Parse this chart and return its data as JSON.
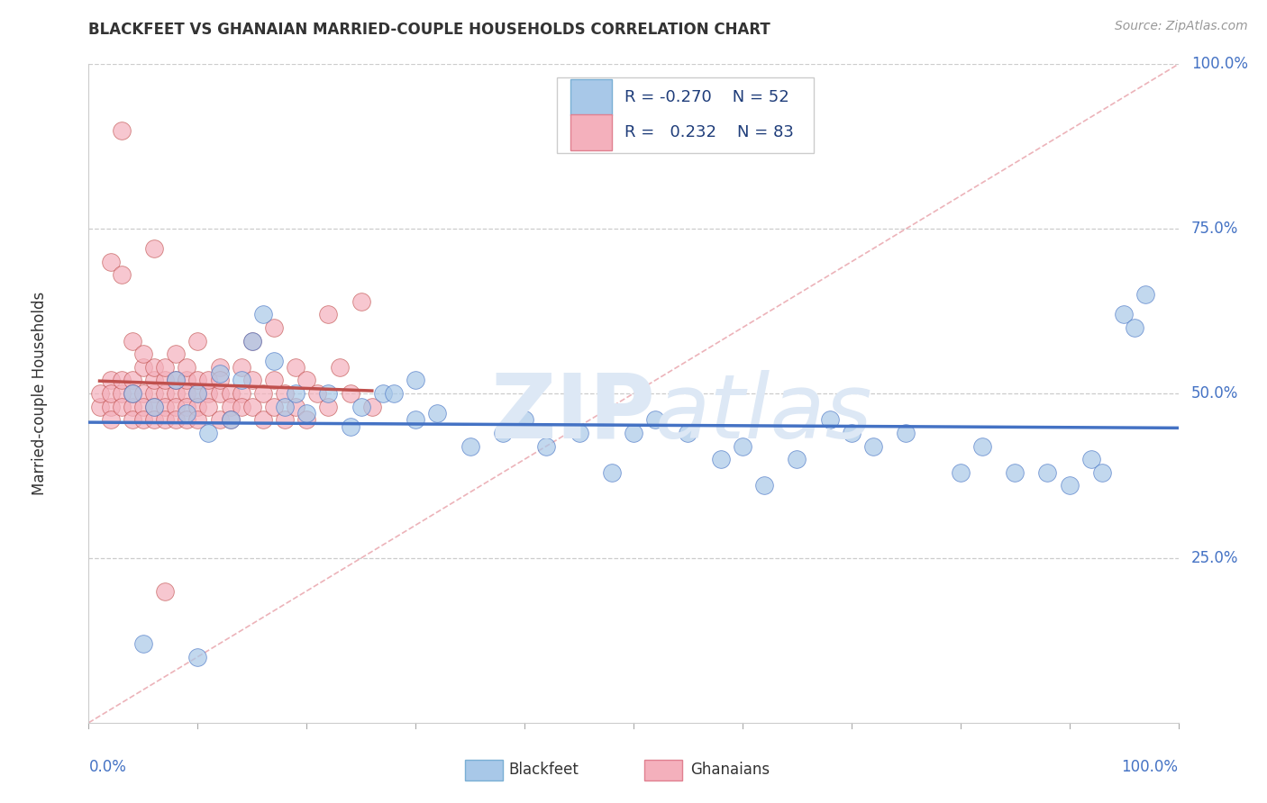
{
  "title": "BLACKFEET VS GHANAIAN MARRIED-COUPLE HOUSEHOLDS CORRELATION CHART",
  "source": "Source: ZipAtlas.com",
  "ylabel": "Married-couple Households",
  "ylabel_ticks": [
    "25.0%",
    "50.0%",
    "75.0%",
    "100.0%"
  ],
  "ylabel_tick_vals": [
    0.25,
    0.5,
    0.75,
    1.0
  ],
  "legend_r_blackfeet": "-0.270",
  "legend_n_blackfeet": "52",
  "legend_r_ghanaians": "0.232",
  "legend_n_ghanaians": "83",
  "blackfeet_color": "#a8c8e8",
  "ghanaians_color": "#f4b0bc",
  "trend_blackfeet_color": "#4472c4",
  "trend_ghanaians_color": "#c0504d",
  "ref_line_color": "#f4b0bc",
  "blackfeet_x": [
    0.04,
    0.06,
    0.08,
    0.09,
    0.1,
    0.11,
    0.12,
    0.13,
    0.14,
    0.15,
    0.16,
    0.17,
    0.18,
    0.19,
    0.2,
    0.22,
    0.24,
    0.25,
    0.27,
    0.28,
    0.3,
    0.3,
    0.32,
    0.35,
    0.38,
    0.4,
    0.42,
    0.45,
    0.48,
    0.5,
    0.52,
    0.55,
    0.58,
    0.6,
    0.62,
    0.65,
    0.68,
    0.7,
    0.72,
    0.75,
    0.8,
    0.82,
    0.85,
    0.88,
    0.9,
    0.92,
    0.93,
    0.95,
    0.96,
    0.97,
    0.05,
    0.1
  ],
  "blackfeet_y": [
    0.5,
    0.48,
    0.52,
    0.47,
    0.5,
    0.44,
    0.53,
    0.46,
    0.52,
    0.58,
    0.62,
    0.55,
    0.48,
    0.5,
    0.47,
    0.5,
    0.45,
    0.48,
    0.5,
    0.5,
    0.46,
    0.52,
    0.47,
    0.42,
    0.44,
    0.46,
    0.42,
    0.44,
    0.38,
    0.44,
    0.46,
    0.44,
    0.4,
    0.42,
    0.36,
    0.4,
    0.46,
    0.44,
    0.42,
    0.44,
    0.38,
    0.42,
    0.38,
    0.38,
    0.36,
    0.4,
    0.38,
    0.62,
    0.6,
    0.65,
    0.12,
    0.1
  ],
  "ghanaians_x": [
    0.01,
    0.01,
    0.02,
    0.02,
    0.02,
    0.02,
    0.03,
    0.03,
    0.03,
    0.04,
    0.04,
    0.04,
    0.04,
    0.05,
    0.05,
    0.05,
    0.05,
    0.06,
    0.06,
    0.06,
    0.06,
    0.06,
    0.07,
    0.07,
    0.07,
    0.07,
    0.07,
    0.08,
    0.08,
    0.08,
    0.08,
    0.08,
    0.09,
    0.09,
    0.09,
    0.09,
    0.09,
    0.1,
    0.1,
    0.1,
    0.1,
    0.1,
    0.11,
    0.11,
    0.11,
    0.12,
    0.12,
    0.12,
    0.12,
    0.13,
    0.13,
    0.13,
    0.14,
    0.14,
    0.14,
    0.15,
    0.15,
    0.15,
    0.16,
    0.16,
    0.17,
    0.17,
    0.17,
    0.18,
    0.18,
    0.19,
    0.19,
    0.2,
    0.2,
    0.21,
    0.22,
    0.22,
    0.23,
    0.24,
    0.25,
    0.26,
    0.02,
    0.03,
    0.04,
    0.05,
    0.06,
    0.03,
    0.07
  ],
  "ghanaians_y": [
    0.48,
    0.5,
    0.48,
    0.52,
    0.46,
    0.5,
    0.5,
    0.48,
    0.52,
    0.52,
    0.48,
    0.5,
    0.46,
    0.5,
    0.48,
    0.54,
    0.46,
    0.5,
    0.48,
    0.52,
    0.54,
    0.46,
    0.5,
    0.52,
    0.48,
    0.46,
    0.54,
    0.5,
    0.48,
    0.52,
    0.56,
    0.46,
    0.5,
    0.52,
    0.48,
    0.46,
    0.54,
    0.5,
    0.52,
    0.48,
    0.58,
    0.46,
    0.5,
    0.52,
    0.48,
    0.5,
    0.46,
    0.54,
    0.52,
    0.5,
    0.48,
    0.46,
    0.54,
    0.5,
    0.48,
    0.52,
    0.58,
    0.48,
    0.5,
    0.46,
    0.52,
    0.6,
    0.48,
    0.5,
    0.46,
    0.54,
    0.48,
    0.52,
    0.46,
    0.5,
    0.62,
    0.48,
    0.54,
    0.5,
    0.64,
    0.48,
    0.7,
    0.68,
    0.58,
    0.56,
    0.72,
    0.9,
    0.2
  ]
}
